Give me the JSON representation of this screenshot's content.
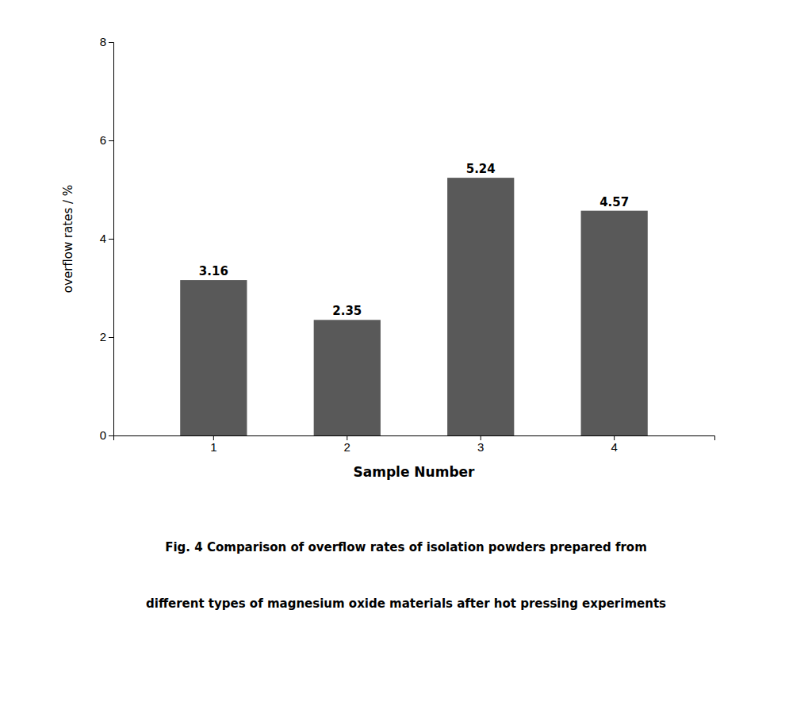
{
  "chart_data": {
    "type": "bar",
    "categories": [
      "1",
      "2",
      "3",
      "4"
    ],
    "values": [
      3.16,
      2.35,
      5.24,
      4.57
    ],
    "color": "#595959",
    "xlabel": "Sample Number",
    "ylabel": "overflow rates / %",
    "ylim": [
      0,
      8
    ],
    "yticks": [
      0,
      2,
      4,
      6,
      8
    ],
    "data_labels": true,
    "grid": false,
    "annotations": [
      "Fig. 4 Comparison of overflow rates of isolation powders prepared from",
      "different types of magnesium oxide materials after hot pressing experiments"
    ]
  }
}
